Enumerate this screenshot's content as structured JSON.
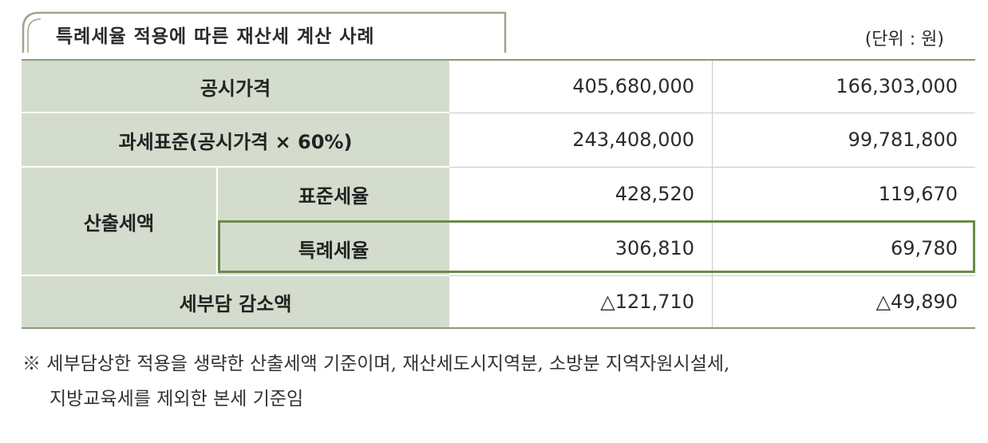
{
  "title": "특례세율 적용에 따른 재산세 계산 사례",
  "unit": "(단위 : 원)",
  "rows": {
    "official_price": {
      "label": "공시가격",
      "col1": "405,680,000",
      "col2": "166,303,000"
    },
    "tax_base": {
      "label": "과세표준(공시가격 × 60%)",
      "col1": "243,408,000",
      "col2": "99,781,800"
    },
    "computed_tax": {
      "label": "산출세액",
      "standard": {
        "label": "표준세율",
        "col1": "428,520",
        "col2": "119,670"
      },
      "special": {
        "label": "특례세율",
        "col1": "306,810",
        "col2": "69,780"
      }
    },
    "reduction": {
      "label": "세부담 감소액",
      "col1": "△121,710",
      "col2": "△49,890"
    }
  },
  "note": {
    "line1": "※ 세부담상한 적용을 생략한 산출세액 기준이며, 재산세도시지역분, 소방분 지역자원시설세,",
    "line2": "지방교육세를 제외한 본세 기준임"
  },
  "colors": {
    "header_bg": "#d4dccd",
    "highlight_border": "#6b8a4a",
    "rule": "#8a9a7a"
  }
}
